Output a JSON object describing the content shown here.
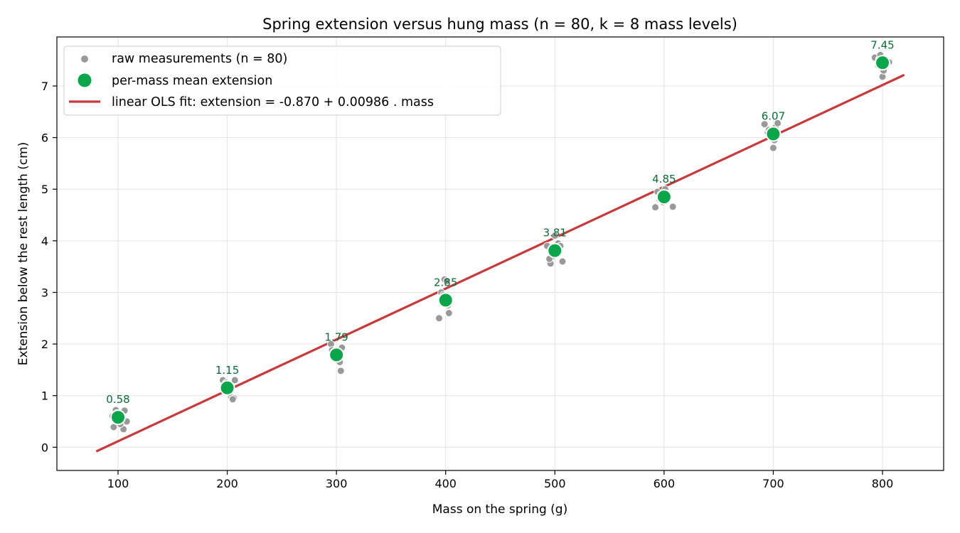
{
  "chart_data": {
    "type": "scatter",
    "title": "Spring extension versus hung mass (n = 80, k = 8 mass levels)",
    "xlabel": "Mass on the spring (g)",
    "ylabel": "Extension below the rest length (cm)",
    "xlim": [
      44,
      856
    ],
    "ylim": [
      -0.45,
      7.95
    ],
    "xticks": [
      100,
      200,
      300,
      400,
      500,
      600,
      700,
      800
    ],
    "yticks": [
      0,
      1,
      2,
      3,
      4,
      5,
      6,
      7
    ],
    "grid": true,
    "legend_position": "top-left",
    "colors": {
      "raw": "#999999",
      "mean": "#0aa64a",
      "mean_label": "#0b6b35",
      "fit": "#c9393b"
    },
    "series": [
      {
        "name": "raw measurements (n = 80)",
        "kind": "scatter",
        "points": [
          [
            96,
            0.39
          ],
          [
            98,
            0.72
          ],
          [
            101,
            0.62
          ],
          [
            104,
            0.55
          ],
          [
            105,
            0.35
          ],
          [
            106,
            0.71
          ],
          [
            108,
            0.5
          ],
          [
            95,
            0.6
          ],
          [
            102,
            0.45
          ],
          [
            99,
            0.66
          ],
          [
            196,
            1.3
          ],
          [
            198,
            1.1
          ],
          [
            201,
            1.21
          ],
          [
            203,
            1.0
          ],
          [
            206,
            0.95
          ],
          [
            207,
            1.3
          ],
          [
            199,
            1.25
          ],
          [
            204,
            1.12
          ],
          [
            202,
            1.05
          ],
          [
            205,
            0.93
          ],
          [
            295,
            2.0
          ],
          [
            297,
            1.75
          ],
          [
            300,
            1.85
          ],
          [
            302,
            1.7
          ],
          [
            304,
            1.48
          ],
          [
            305,
            1.93
          ],
          [
            298,
            1.78
          ],
          [
            301,
            1.8
          ],
          [
            303,
            1.65
          ],
          [
            296,
            1.88
          ],
          [
            394,
            2.5
          ],
          [
            397,
            2.8
          ],
          [
            399,
            3.25
          ],
          [
            401,
            3.22
          ],
          [
            403,
            2.6
          ],
          [
            396,
            3.0
          ],
          [
            400,
            2.9
          ],
          [
            402,
            2.75
          ],
          [
            398,
            2.95
          ],
          [
            404,
            2.85
          ],
          [
            493,
            3.9
          ],
          [
            496,
            3.56
          ],
          [
            498,
            3.7
          ],
          [
            500,
            4.1
          ],
          [
            503,
            3.95
          ],
          [
            507,
            3.6
          ],
          [
            495,
            3.65
          ],
          [
            502,
            3.85
          ],
          [
            499,
            3.75
          ],
          [
            505,
            3.9
          ],
          [
            592,
            4.65
          ],
          [
            594,
            4.95
          ],
          [
            596,
            4.8
          ],
          [
            599,
            4.75
          ],
          [
            601,
            5.0
          ],
          [
            604,
            4.85
          ],
          [
            608,
            4.66
          ],
          [
            597,
            4.9
          ],
          [
            603,
            4.8
          ],
          [
            600,
            4.92
          ],
          [
            692,
            6.26
          ],
          [
            695,
            6.1
          ],
          [
            698,
            6.0
          ],
          [
            700,
            5.8
          ],
          [
            702,
            6.2
          ],
          [
            704,
            6.28
          ],
          [
            697,
            6.05
          ],
          [
            701,
            5.95
          ],
          [
            703,
            6.1
          ],
          [
            696,
            6.15
          ],
          [
            793,
            7.55
          ],
          [
            796,
            7.4
          ],
          [
            799,
            7.5
          ],
          [
            800,
            7.18
          ],
          [
            802,
            7.35
          ],
          [
            806,
            7.46
          ],
          [
            797,
            7.52
          ],
          [
            801,
            7.3
          ],
          [
            804,
            7.42
          ],
          [
            798,
            7.6
          ]
        ]
      },
      {
        "name": "per-mass mean extension",
        "kind": "mean",
        "x": [
          100,
          200,
          300,
          400,
          500,
          600,
          700,
          800
        ],
        "y": [
          0.58,
          1.15,
          1.79,
          2.85,
          3.81,
          4.85,
          6.07,
          7.45
        ],
        "labels": [
          "0.58",
          "1.15",
          "1.79",
          "2.85",
          "3.81",
          "4.85",
          "6.07",
          "7.45"
        ]
      },
      {
        "name": "linear OLS fit: extension = -0.870 + 0.00986 . mass",
        "kind": "line",
        "intercept": -0.87,
        "slope": 0.00986,
        "x_range": [
          80,
          820
        ]
      }
    ]
  }
}
